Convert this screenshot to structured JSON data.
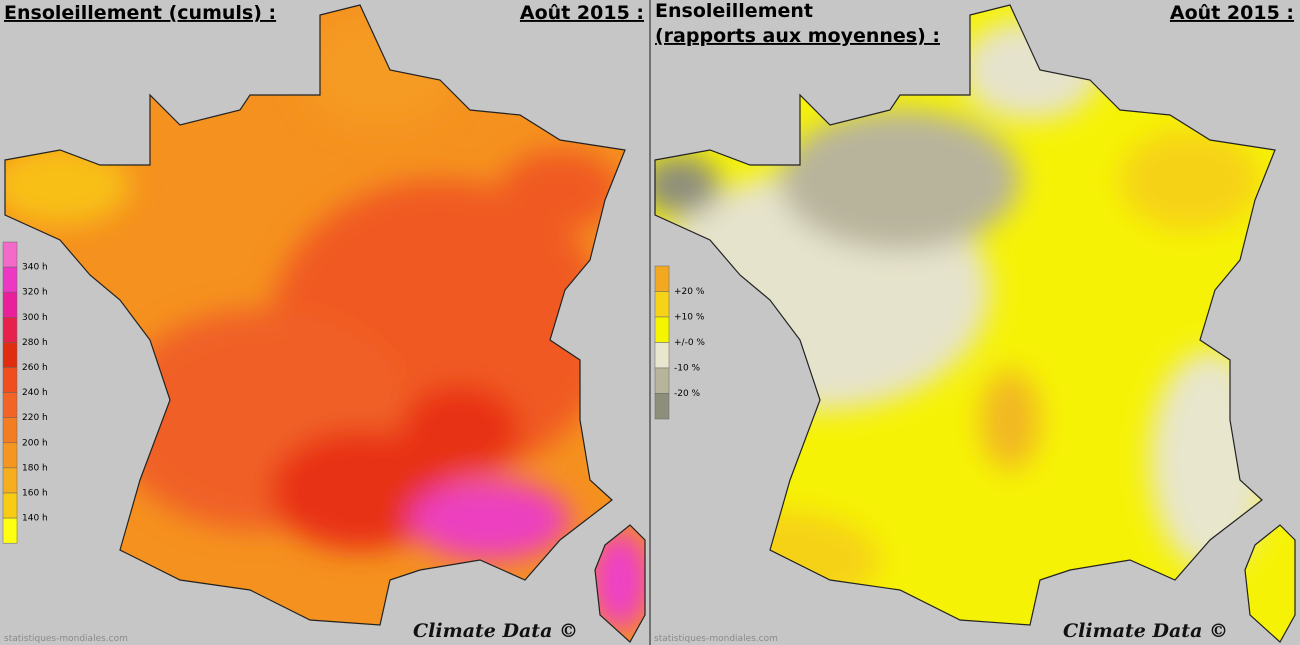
{
  "left_panel": {
    "title": "Ensoleillement (cumuls) :",
    "date": "Août 2015 :",
    "legend_colors": [
      "#f46ac8",
      "#ec38c4",
      "#e8209c",
      "#e8204c",
      "#e02c10",
      "#f04e1e",
      "#f26426",
      "#f47c22",
      "#f59622",
      "#f6ae1e",
      "#f8cc12",
      "#ffff10"
    ],
    "legend_labels": [
      "340 h",
      "320 h",
      "300 h",
      "280 h",
      "260 h",
      "240 h",
      "220 h",
      "200 h",
      "180 h",
      "160 h",
      "140 h"
    ],
    "watermark": "statistiques-mondiales.com",
    "credit": "Climate Data ©"
  },
  "right_panel": {
    "title_lines": [
      "Ensoleillement",
      "(rapports aux moyennes) :"
    ],
    "date": "Août 2015 :",
    "legend_colors": [
      "#f2a820",
      "#f6d218",
      "#f5f500",
      "#e8e6cc",
      "#b8b49c",
      "#8e8e7c"
    ],
    "legend_labels": [
      "+20 %",
      "+10 %",
      "+/-0 %",
      "-10 %",
      "-20 %"
    ],
    "watermark": "statistiques-mondiales.com",
    "credit": "Climate Data ©"
  }
}
